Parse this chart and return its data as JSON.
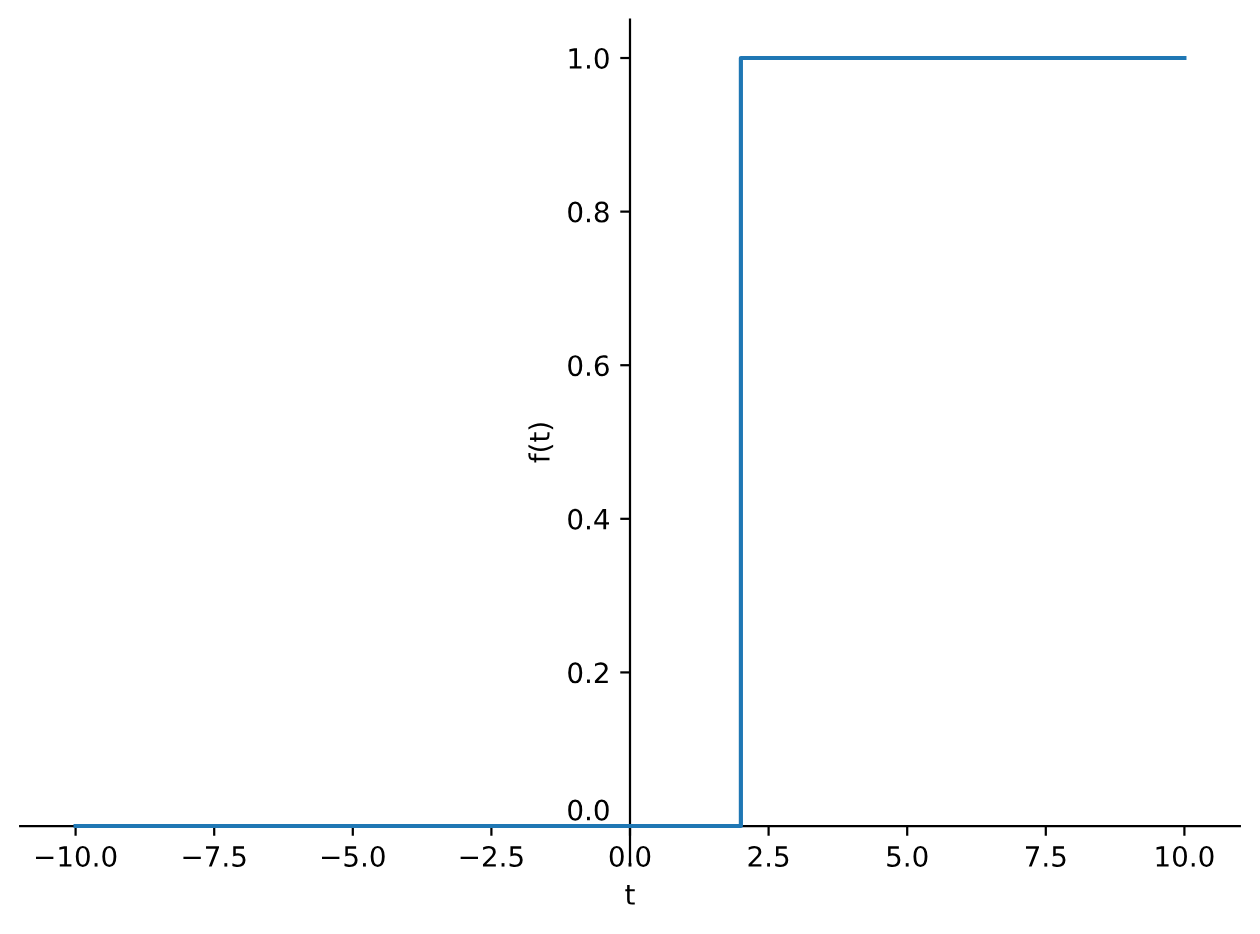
{
  "chart_data": {
    "type": "step",
    "x": [
      -10,
      2,
      10
    ],
    "values": [
      0,
      1,
      1
    ],
    "color": "#1f77b4",
    "xlabel": "t",
    "ylabel": "f(t)",
    "xlim": [
      -11,
      11
    ],
    "ylim": [
      -0.05,
      1.05
    ],
    "xticks": [
      {
        "value": -10,
        "label": "−10.0"
      },
      {
        "value": -7.5,
        "label": "−7.5"
      },
      {
        "value": -5,
        "label": "−5.0"
      },
      {
        "value": -2.5,
        "label": "−2.5"
      },
      {
        "value": 0,
        "label": "0.0"
      },
      {
        "value": 2.5,
        "label": "2.5"
      },
      {
        "value": 5,
        "label": "5.0"
      },
      {
        "value": 7.5,
        "label": "7.5"
      },
      {
        "value": 10,
        "label": "10.0"
      }
    ],
    "yticks": [
      {
        "value": 0,
        "label": "0.0"
      },
      {
        "value": 0.2,
        "label": "0.2"
      },
      {
        "value": 0.4,
        "label": "0.4"
      },
      {
        "value": 0.6,
        "label": "0.6"
      },
      {
        "value": 0.8,
        "label": "0.8"
      },
      {
        "value": 1,
        "label": "1.0"
      }
    ],
    "grid": false
  }
}
